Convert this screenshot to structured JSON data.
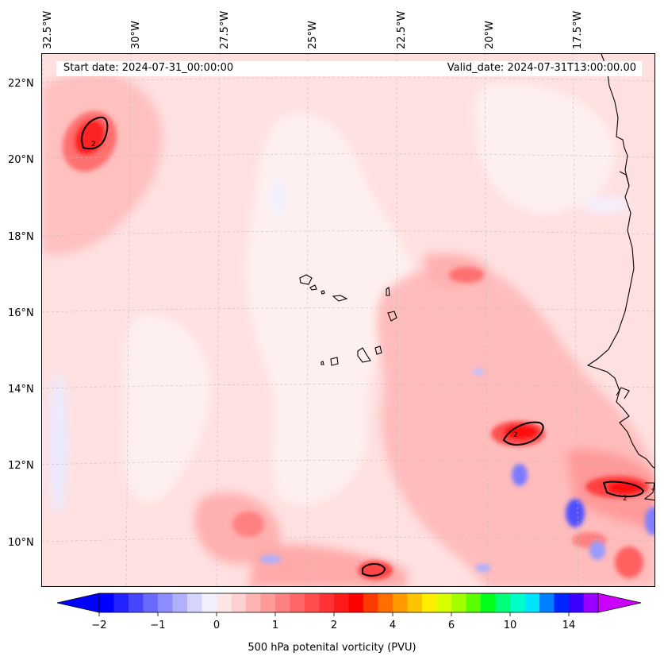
{
  "header": {
    "start_date": "Start date: 2024-07-31_00:00:00",
    "valid_date": "Valid_date: 2024-07-31T13:00:00.00"
  },
  "longitude_labels": [
    "32.5°W",
    "30°W",
    "27.5°W",
    "25°W",
    "22.5°W",
    "20°W",
    "17.5°W"
  ],
  "latitude_labels": [
    "22°N",
    "20°N",
    "18°N",
    "16°N",
    "14°N",
    "12°N",
    "10°N"
  ],
  "colorbar": {
    "label": "500 hPa potenital vorticity (PVU)",
    "tick_labels": [
      "−2",
      "−1",
      "0",
      "1",
      "2",
      "4",
      "6",
      "10",
      "14"
    ],
    "tick_values": [
      -2,
      -1,
      0,
      1,
      2,
      4,
      6,
      10,
      14
    ],
    "colors": [
      "#0000ff",
      "#2323ff",
      "#4646ff",
      "#6a6aff",
      "#8d8dff",
      "#b0b0ff",
      "#d4d4ff",
      "#f0f0ff",
      "#ffe6e6",
      "#ffd0d0",
      "#ffb4b4",
      "#ff9a9a",
      "#ff8080",
      "#ff6666",
      "#ff4d4d",
      "#ff3333",
      "#ff1a1a",
      "#ff0000",
      "#ff3a00",
      "#ff6e00",
      "#ff9b00",
      "#ffc400",
      "#ffee00",
      "#d8ff00",
      "#a0ff00",
      "#5cff00",
      "#00ff19",
      "#00ff7a",
      "#00ffc8",
      "#00e4ff",
      "#0080ff",
      "#0024ff",
      "#3a00ff",
      "#9a00ff"
    ],
    "under_color": "#0000ff",
    "over_color": "#cc00ff"
  },
  "map": {
    "base_color": "#ffe0e0",
    "contour_label": "2",
    "contour_labels": [
      "2",
      "2",
      "2"
    ]
  }
}
